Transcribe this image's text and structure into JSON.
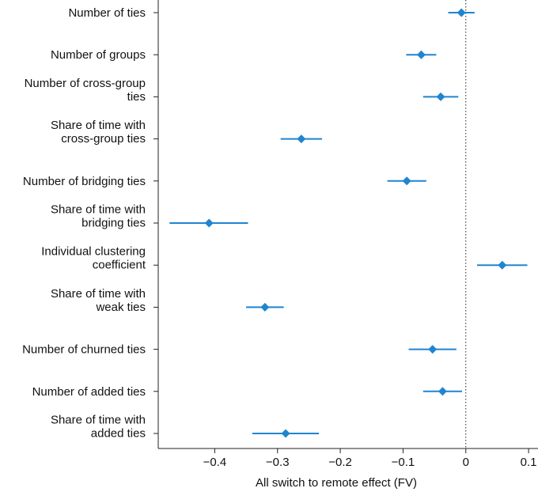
{
  "chart_data": {
    "type": "scatter",
    "title": "",
    "xlabel": "All switch to remote effect (FV)",
    "ylabel": "",
    "xlim": [
      -0.49,
      0.115
    ],
    "xticks": [
      -0.4,
      -0.3,
      -0.2,
      -0.1,
      0,
      0.1
    ],
    "xtick_labels": [
      "−0.4",
      "−0.3",
      "−0.2",
      "−0.1",
      "0",
      "0.1"
    ],
    "reference_line": 0,
    "grid": false,
    "marker": "diamond",
    "color": "#1f85d0",
    "categories": [
      [
        "Number of ties"
      ],
      [
        "Number of groups"
      ],
      [
        "Number of cross-group",
        "ties"
      ],
      [
        "Share of time with",
        "cross-group ties"
      ],
      [
        "Number of bridging ties"
      ],
      [
        "Share of time with",
        "bridging ties"
      ],
      [
        "Individual clustering",
        "coefficient"
      ],
      [
        "Share of time with",
        "weak ties"
      ],
      [
        "Number of churned ties"
      ],
      [
        "Number of added ties"
      ],
      [
        "Share of time with",
        "added ties"
      ]
    ],
    "points": [
      {
        "estimate": -0.007,
        "low": -0.028,
        "high": 0.014
      },
      {
        "estimate": -0.071,
        "low": -0.095,
        "high": -0.047
      },
      {
        "estimate": -0.04,
        "low": -0.068,
        "high": -0.012
      },
      {
        "estimate": -0.262,
        "low": -0.295,
        "high": -0.229
      },
      {
        "estimate": -0.094,
        "low": -0.125,
        "high": -0.063
      },
      {
        "estimate": -0.409,
        "low": -0.472,
        "high": -0.347
      },
      {
        "estimate": 0.058,
        "low": 0.018,
        "high": 0.098
      },
      {
        "estimate": -0.32,
        "low": -0.35,
        "high": -0.29
      },
      {
        "estimate": -0.053,
        "low": -0.091,
        "high": -0.015
      },
      {
        "estimate": -0.037,
        "low": -0.068,
        "high": -0.006
      },
      {
        "estimate": -0.287,
        "low": -0.34,
        "high": -0.234
      }
    ]
  }
}
